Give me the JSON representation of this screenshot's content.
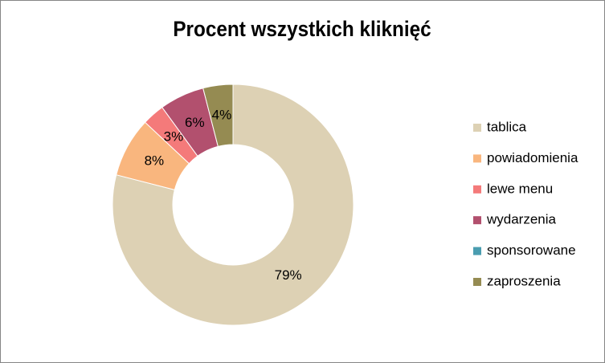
{
  "chart_data": {
    "type": "donut",
    "title": "Procent wszystkich kliknięć",
    "categories": [
      "tablica",
      "powiadomienia",
      "lewe menu",
      "wydarzenia",
      "sponsorowane",
      "zaproszenia"
    ],
    "values": [
      79,
      8,
      3,
      6,
      0,
      4
    ],
    "value_labels": [
      "79%",
      "8%",
      "3%",
      "6%",
      null,
      "4%"
    ],
    "colors": [
      "#ddd1b4",
      "#f9b67e",
      "#f47a7a",
      "#b2506e",
      "#4a9db0",
      "#958b52"
    ],
    "legend": "right"
  }
}
